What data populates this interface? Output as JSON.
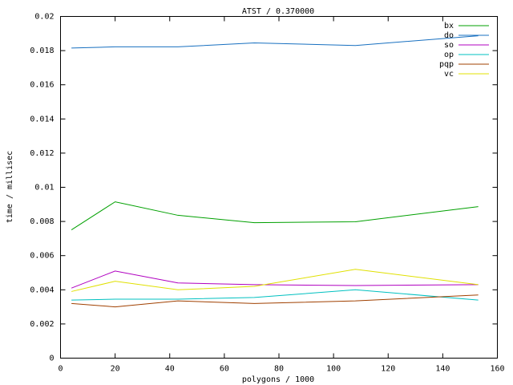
{
  "chart_data": {
    "type": "line",
    "title": "ATST / 0.370000",
    "x_label": "polygons / 1000",
    "y_label": "time / millisec",
    "x": [
      4,
      20,
      43,
      71,
      108,
      153
    ],
    "series": [
      {
        "name": "bx",
        "color": "#00a000",
        "values": [
          0.00751,
          0.00915,
          0.00836,
          0.00793,
          0.00798,
          0.00887
        ]
      },
      {
        "name": "do",
        "color": "#1870c0",
        "values": [
          0.01815,
          0.01822,
          0.01822,
          0.01845,
          0.0183,
          0.01887
        ]
      },
      {
        "name": "so",
        "color": "#b000c0",
        "values": [
          0.0041,
          0.0051,
          0.0044,
          0.0043,
          0.00425,
          0.0043
        ]
      },
      {
        "name": "op",
        "color": "#00c0c0",
        "values": [
          0.0034,
          0.00345,
          0.00345,
          0.00355,
          0.004,
          0.0034
        ]
      },
      {
        "name": "pqp",
        "color": "#a04000",
        "values": [
          0.0032,
          0.003,
          0.00335,
          0.0032,
          0.00335,
          0.0037
        ]
      },
      {
        "name": "vc",
        "color": "#e0e000",
        "values": [
          0.0039,
          0.0045,
          0.004,
          0.0042,
          0.0052,
          0.0043
        ]
      }
    ],
    "xlim": [
      0,
      160
    ],
    "xticks": [
      0,
      20,
      40,
      60,
      80,
      100,
      120,
      140,
      160
    ],
    "ylim": [
      0,
      0.02
    ],
    "yticks": [
      0,
      0.002,
      0.004,
      0.006,
      0.008,
      0.01,
      0.012,
      0.014,
      0.016,
      0.018,
      0.02
    ],
    "grid": false,
    "legend_position": "top-right"
  }
}
